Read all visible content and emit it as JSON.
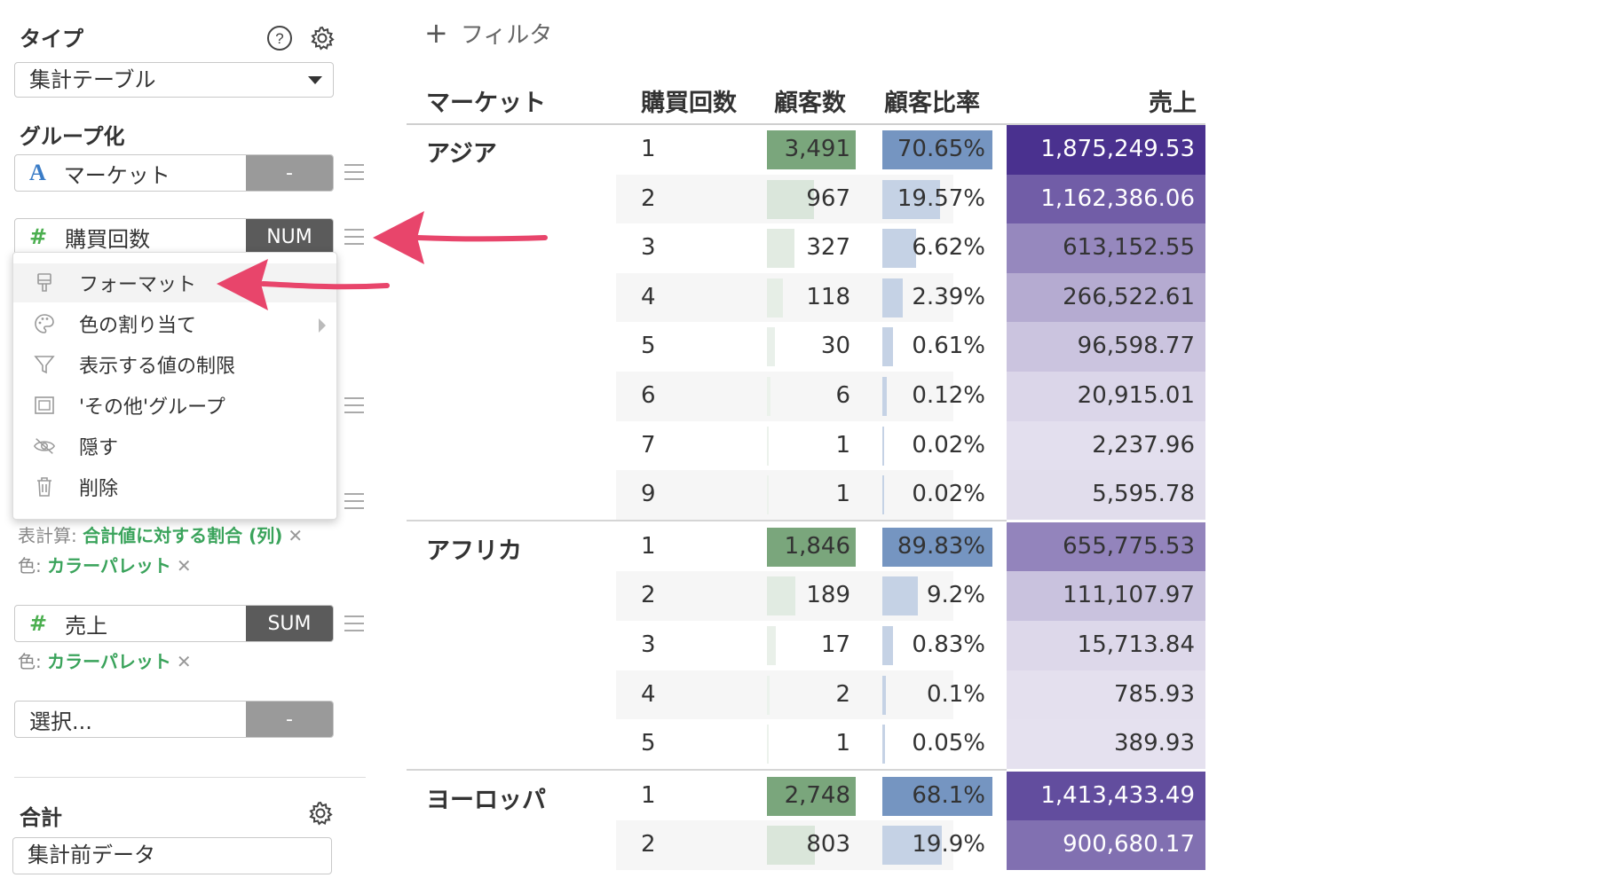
{
  "sidebar": {
    "type_label": "タイプ",
    "type_value": "集計テーブル",
    "group_label": "グループ化",
    "dim1": {
      "name": "マーケット",
      "type": "-"
    },
    "dim2": {
      "name": "購買回数",
      "type": "NUM"
    },
    "menu": [
      {
        "label": "フォーマット",
        "icon": "format-brush-icon"
      },
      {
        "label": "色の割り当て",
        "icon": "palette-icon"
      },
      {
        "label": "表示する値の制限",
        "icon": "filter-icon"
      },
      {
        "label": "'その他'グループ",
        "icon": "group-frame-icon"
      },
      {
        "label": "隠す",
        "icon": "eye-slash-icon"
      },
      {
        "label": "削除",
        "icon": "trash-icon"
      }
    ],
    "calc1": {
      "key": "表計算: ",
      "value": "合計値に対する割合 (列)"
    },
    "color1": {
      "key": "色: ",
      "value": "カラーパレット"
    },
    "value3": {
      "name": "売上",
      "type": "SUM"
    },
    "color2": {
      "key": "色: ",
      "value": "カラーパレット"
    },
    "select_placeholder": "選択...",
    "select_type": "-",
    "total_label": "合計",
    "total_value": "集計前データ"
  },
  "filter_label": "フィルタ",
  "table": {
    "headers": [
      "マーケット",
      "購買回数",
      "顧客数",
      "顧客比率",
      "売上"
    ],
    "colors": {
      "count": "#7aa67c",
      "ratio": "#6e8fbe",
      "sales": "#4a318f"
    },
    "groups": [
      {
        "name": "アジア",
        "rows": [
          {
            "n": "1",
            "c": "3,491",
            "cv": 3491,
            "r": "70.65%",
            "rv": 70.65,
            "s": "1,875,249.53",
            "sv": 1875249.53
          },
          {
            "n": "2",
            "c": "967",
            "cv": 967,
            "r": "19.57%",
            "rv": 19.57,
            "s": "1,162,386.06",
            "sv": 1162386.06
          },
          {
            "n": "3",
            "c": "327",
            "cv": 327,
            "r": "6.62%",
            "rv": 6.62,
            "s": "613,152.55",
            "sv": 613152.55
          },
          {
            "n": "4",
            "c": "118",
            "cv": 118,
            "r": "2.39%",
            "rv": 2.39,
            "s": "266,522.61",
            "sv": 266522.61
          },
          {
            "n": "5",
            "c": "30",
            "cv": 30,
            "r": "0.61%",
            "rv": 0.61,
            "s": "96,598.77",
            "sv": 96598.77
          },
          {
            "n": "6",
            "c": "6",
            "cv": 6,
            "r": "0.12%",
            "rv": 0.12,
            "s": "20,915.01",
            "sv": 20915.01
          },
          {
            "n": "7",
            "c": "1",
            "cv": 1,
            "r": "0.02%",
            "rv": 0.02,
            "s": "2,237.96",
            "sv": 2237.96
          },
          {
            "n": "9",
            "c": "1",
            "cv": 1,
            "r": "0.02%",
            "rv": 0.02,
            "s": "5,595.78",
            "sv": 5595.78
          }
        ]
      },
      {
        "name": "アフリカ",
        "rows": [
          {
            "n": "1",
            "c": "1,846",
            "cv": 1846,
            "r": "89.83%",
            "rv": 89.83,
            "s": "655,775.53",
            "sv": 655775.53
          },
          {
            "n": "2",
            "c": "189",
            "cv": 189,
            "r": "9.2%",
            "rv": 9.2,
            "s": "111,107.97",
            "sv": 111107.97
          },
          {
            "n": "3",
            "c": "17",
            "cv": 17,
            "r": "0.83%",
            "rv": 0.83,
            "s": "15,713.84",
            "sv": 15713.84
          },
          {
            "n": "4",
            "c": "2",
            "cv": 2,
            "r": "0.1%",
            "rv": 0.1,
            "s": "785.93",
            "sv": 785.93
          },
          {
            "n": "5",
            "c": "1",
            "cv": 1,
            "r": "0.05%",
            "rv": 0.05,
            "s": "389.93",
            "sv": 389.93
          }
        ]
      },
      {
        "name": "ヨーロッパ",
        "rows": [
          {
            "n": "1",
            "c": "2,748",
            "cv": 2748,
            "r": "68.1%",
            "rv": 68.1,
            "s": "1,413,433.49",
            "sv": 1413433.49
          },
          {
            "n": "2",
            "c": "803",
            "cv": 803,
            "r": "19.9%",
            "rv": 19.9,
            "s": "900,680.17",
            "sv": 900680.17
          }
        ]
      }
    ]
  }
}
